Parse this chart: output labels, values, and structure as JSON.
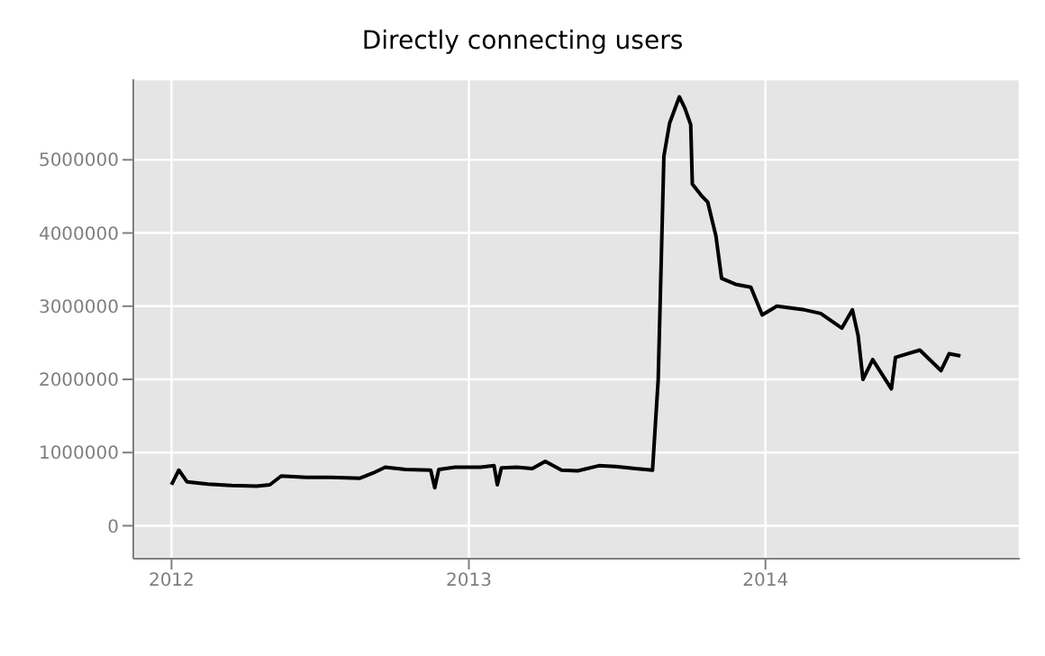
{
  "chart_data": {
    "type": "line",
    "title": "Directly connecting users",
    "x": [
      "2012-01-01",
      "2012-01-10",
      "2012-01-20",
      "2012-02-15",
      "2012-03-15",
      "2012-04-15",
      "2012-05-01",
      "2012-05-15",
      "2012-06-15",
      "2012-07-15",
      "2012-08-20",
      "2012-09-05",
      "2012-09-20",
      "2012-10-15",
      "2012-11-15",
      "2012-11-20",
      "2012-11-25",
      "2012-12-15",
      "2013-01-15",
      "2013-02-01",
      "2013-02-05",
      "2013-02-10",
      "2013-03-01",
      "2013-03-20",
      "2013-04-05",
      "2013-04-25",
      "2013-05-15",
      "2013-06-10",
      "2013-07-01",
      "2013-07-25",
      "2013-08-15",
      "2013-08-22",
      "2013-08-29",
      "2013-09-05",
      "2013-09-17",
      "2013-09-24",
      "2013-10-01",
      "2013-10-03",
      "2013-10-15",
      "2013-10-22",
      "2013-11-01",
      "2013-11-08",
      "2013-11-25",
      "2013-12-14",
      "2013-12-28",
      "2014-01-15",
      "2014-02-18",
      "2014-03-10",
      "2014-04-05",
      "2014-04-18",
      "2014-04-25",
      "2014-05-01",
      "2014-05-13",
      "2014-06-05",
      "2014-06-10",
      "2014-07-10",
      "2014-08-05",
      "2014-08-15",
      "2014-08-29"
    ],
    "series": [
      {
        "color": "#000000",
        "values": [
          560000,
          760000,
          600000,
          570000,
          550000,
          540000,
          560000,
          680000,
          660000,
          660000,
          650000,
          720000,
          800000,
          770000,
          760000,
          520000,
          770000,
          800000,
          800000,
          820000,
          560000,
          790000,
          800000,
          780000,
          880000,
          760000,
          750000,
          820000,
          810000,
          780000,
          760000,
          2000000,
          5050000,
          5500000,
          5860000,
          5700000,
          5480000,
          4670000,
          4500000,
          4420000,
          3960000,
          3380000,
          3300000,
          3260000,
          2880000,
          3000000,
          2950000,
          2900000,
          2700000,
          2950000,
          2600000,
          2000000,
          2270000,
          1870000,
          2300000,
          2400000,
          2120000,
          2350000,
          2320000
        ]
      }
    ],
    "xlim": [
      "2011-11-15",
      "2014-11-10"
    ],
    "xticks": [
      "2012",
      "2013",
      "2014"
    ],
    "ylim": [
      -450000,
      6100000
    ],
    "yticks": [
      0,
      1000000,
      2000000,
      3000000,
      4000000,
      5000000
    ],
    "grid": true,
    "marker": "none",
    "line_style": "solid"
  }
}
